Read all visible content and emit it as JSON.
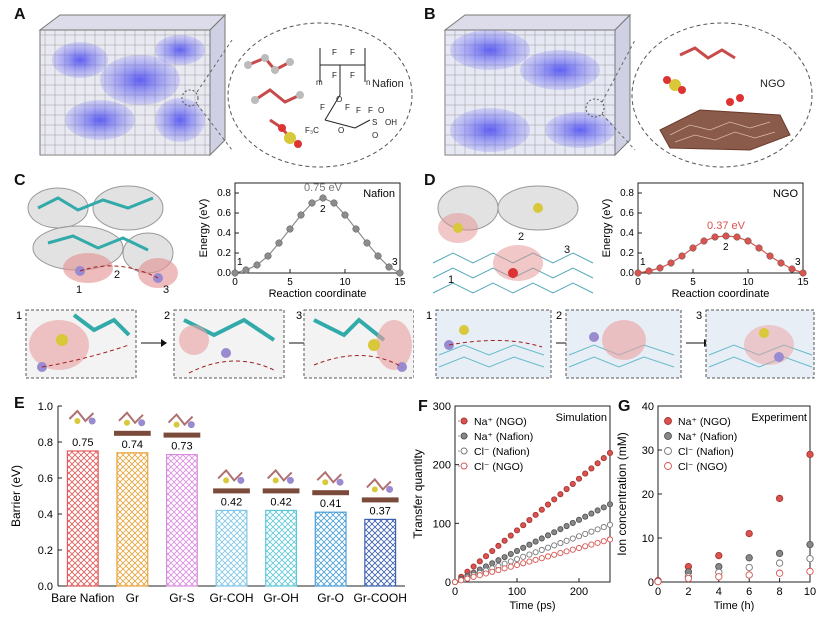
{
  "panels": {
    "A": {
      "label": "A",
      "inset_label": "Nafion"
    },
    "B": {
      "label": "B",
      "inset_label": "NGO"
    },
    "C": {
      "label": "C",
      "chart_label": "Nafion",
      "peak_label": "0.75 eV",
      "steps": [
        "1",
        "2",
        "3"
      ]
    },
    "D": {
      "label": "D",
      "chart_label": "NGO",
      "peak_label": "0.37 eV",
      "steps": [
        "1",
        "2",
        "3"
      ]
    },
    "E": {
      "label": "E"
    },
    "F": {
      "label": "F",
      "legend_title": "Simulation"
    },
    "G": {
      "label": "G",
      "legend_title": "Experiment"
    }
  },
  "nafion_formula": {
    "atoms": [
      "F",
      "F",
      "F",
      "F",
      "F",
      "F",
      "F",
      "F",
      "F",
      "F",
      "F",
      "F",
      "O",
      "O",
      "F₃C",
      "F₃C",
      "S",
      "O",
      "OH",
      "O",
      "m",
      "n",
      "F",
      "F"
    ]
  },
  "chart_data": [
    {
      "id": "C",
      "type": "line",
      "xlabel": "Reaction coordinate",
      "ylabel": "Energy (eV)",
      "xlim": [
        0,
        15
      ],
      "ylim": [
        0,
        0.9
      ],
      "xticks": [
        "0",
        "5",
        "10",
        "15"
      ],
      "yticks": [
        "0.0",
        "0.2",
        "0.4",
        "0.6",
        "0.8"
      ],
      "x": [
        0,
        1,
        2,
        3,
        4,
        5,
        6,
        7,
        8,
        9,
        10,
        11,
        12,
        13,
        14,
        15
      ],
      "values": [
        0.0,
        0.03,
        0.08,
        0.17,
        0.3,
        0.44,
        0.58,
        0.7,
        0.75,
        0.7,
        0.58,
        0.44,
        0.3,
        0.17,
        0.06,
        0.0
      ],
      "color": "#8c8c8c"
    },
    {
      "id": "D",
      "type": "line",
      "xlabel": "Reaction coordinate",
      "ylabel": "Energy (eV)",
      "xlim": [
        0,
        15
      ],
      "ylim": [
        0,
        0.9
      ],
      "xticks": [
        "0",
        "5",
        "10",
        "15"
      ],
      "yticks": [
        "0.0",
        "0.2",
        "0.4",
        "0.6",
        "0.8"
      ],
      "x": [
        0,
        1,
        2,
        3,
        4,
        5,
        6,
        7,
        8,
        9,
        10,
        11,
        12,
        13,
        14,
        15
      ],
      "values": [
        0.0,
        0.02,
        0.05,
        0.1,
        0.17,
        0.25,
        0.32,
        0.36,
        0.37,
        0.36,
        0.32,
        0.25,
        0.17,
        0.1,
        0.04,
        0.0
      ],
      "color": "#d9534f"
    },
    {
      "id": "E",
      "type": "bar",
      "ylabel": "Barrier (eV)",
      "ylim": [
        0,
        1.0
      ],
      "yticks": [
        "0.0",
        "0.2",
        "0.4",
        "0.6",
        "0.8",
        "1.0"
      ],
      "categories": [
        "Bare Nafion",
        "Gr",
        "Gr-S",
        "Gr-COH",
        "Gr-OH",
        "Gr-O",
        "Gr-COOH"
      ],
      "values": [
        0.75,
        0.74,
        0.73,
        0.42,
        0.42,
        0.41,
        0.37
      ],
      "value_labels": [
        "0.75",
        "0.74",
        "0.73",
        "0.42",
        "0.42",
        "0.41",
        "0.37"
      ],
      "colors": [
        "#e05a5a",
        "#e8a33a",
        "#d98be0",
        "#7fc6e8",
        "#5fc8d8",
        "#4a9fd8",
        "#3c5fb0"
      ]
    },
    {
      "id": "F",
      "type": "scatter",
      "xlabel": "Time (ps)",
      "ylabel": "Transfer quantity",
      "xlim": [
        0,
        250
      ],
      "ylim": [
        0,
        300
      ],
      "xticks": [
        "0",
        "100",
        "200"
      ],
      "yticks": [
        "0",
        "100",
        "200",
        "300"
      ],
      "series": [
        {
          "name": "Na⁺ (NGO)",
          "slope": 0.88,
          "style": "filled-red"
        },
        {
          "name": "Na⁺ (Nafion)",
          "slope": 0.53,
          "style": "filled-gray"
        },
        {
          "name": "Cl⁻ (Nafion)",
          "slope": 0.39,
          "style": "open-gray"
        },
        {
          "name": "Cl⁻ (NGO)",
          "slope": 0.29,
          "style": "open-red"
        }
      ]
    },
    {
      "id": "G",
      "type": "scatter",
      "xlabel": "Time (h)",
      "ylabel": "Ion concentration (mM)",
      "xlim": [
        0,
        10
      ],
      "ylim": [
        0,
        40
      ],
      "xticks": [
        "0",
        "2",
        "4",
        "6",
        "8",
        "10"
      ],
      "yticks": [
        "0",
        "10",
        "20",
        "30",
        "40"
      ],
      "x": [
        0,
        2,
        4,
        6,
        8,
        10
      ],
      "series": [
        {
          "name": "Na⁺ (NGO)",
          "values": [
            0.3,
            3.5,
            6,
            11,
            19,
            29
          ],
          "style": "filled-red"
        },
        {
          "name": "Na⁺ (Nafion)",
          "values": [
            0.2,
            2.3,
            3.5,
            5.5,
            6.5,
            8.5
          ],
          "style": "filled-gray"
        },
        {
          "name": "Cl⁻ (Nafion)",
          "values": [
            0.1,
            1.2,
            2.2,
            3.3,
            4.3,
            5.3
          ],
          "style": "open-gray"
        },
        {
          "name": "Cl⁻ (NGO)",
          "values": [
            0.1,
            0.8,
            1.2,
            1.6,
            2.0,
            2.4
          ],
          "style": "open-red"
        }
      ]
    }
  ]
}
